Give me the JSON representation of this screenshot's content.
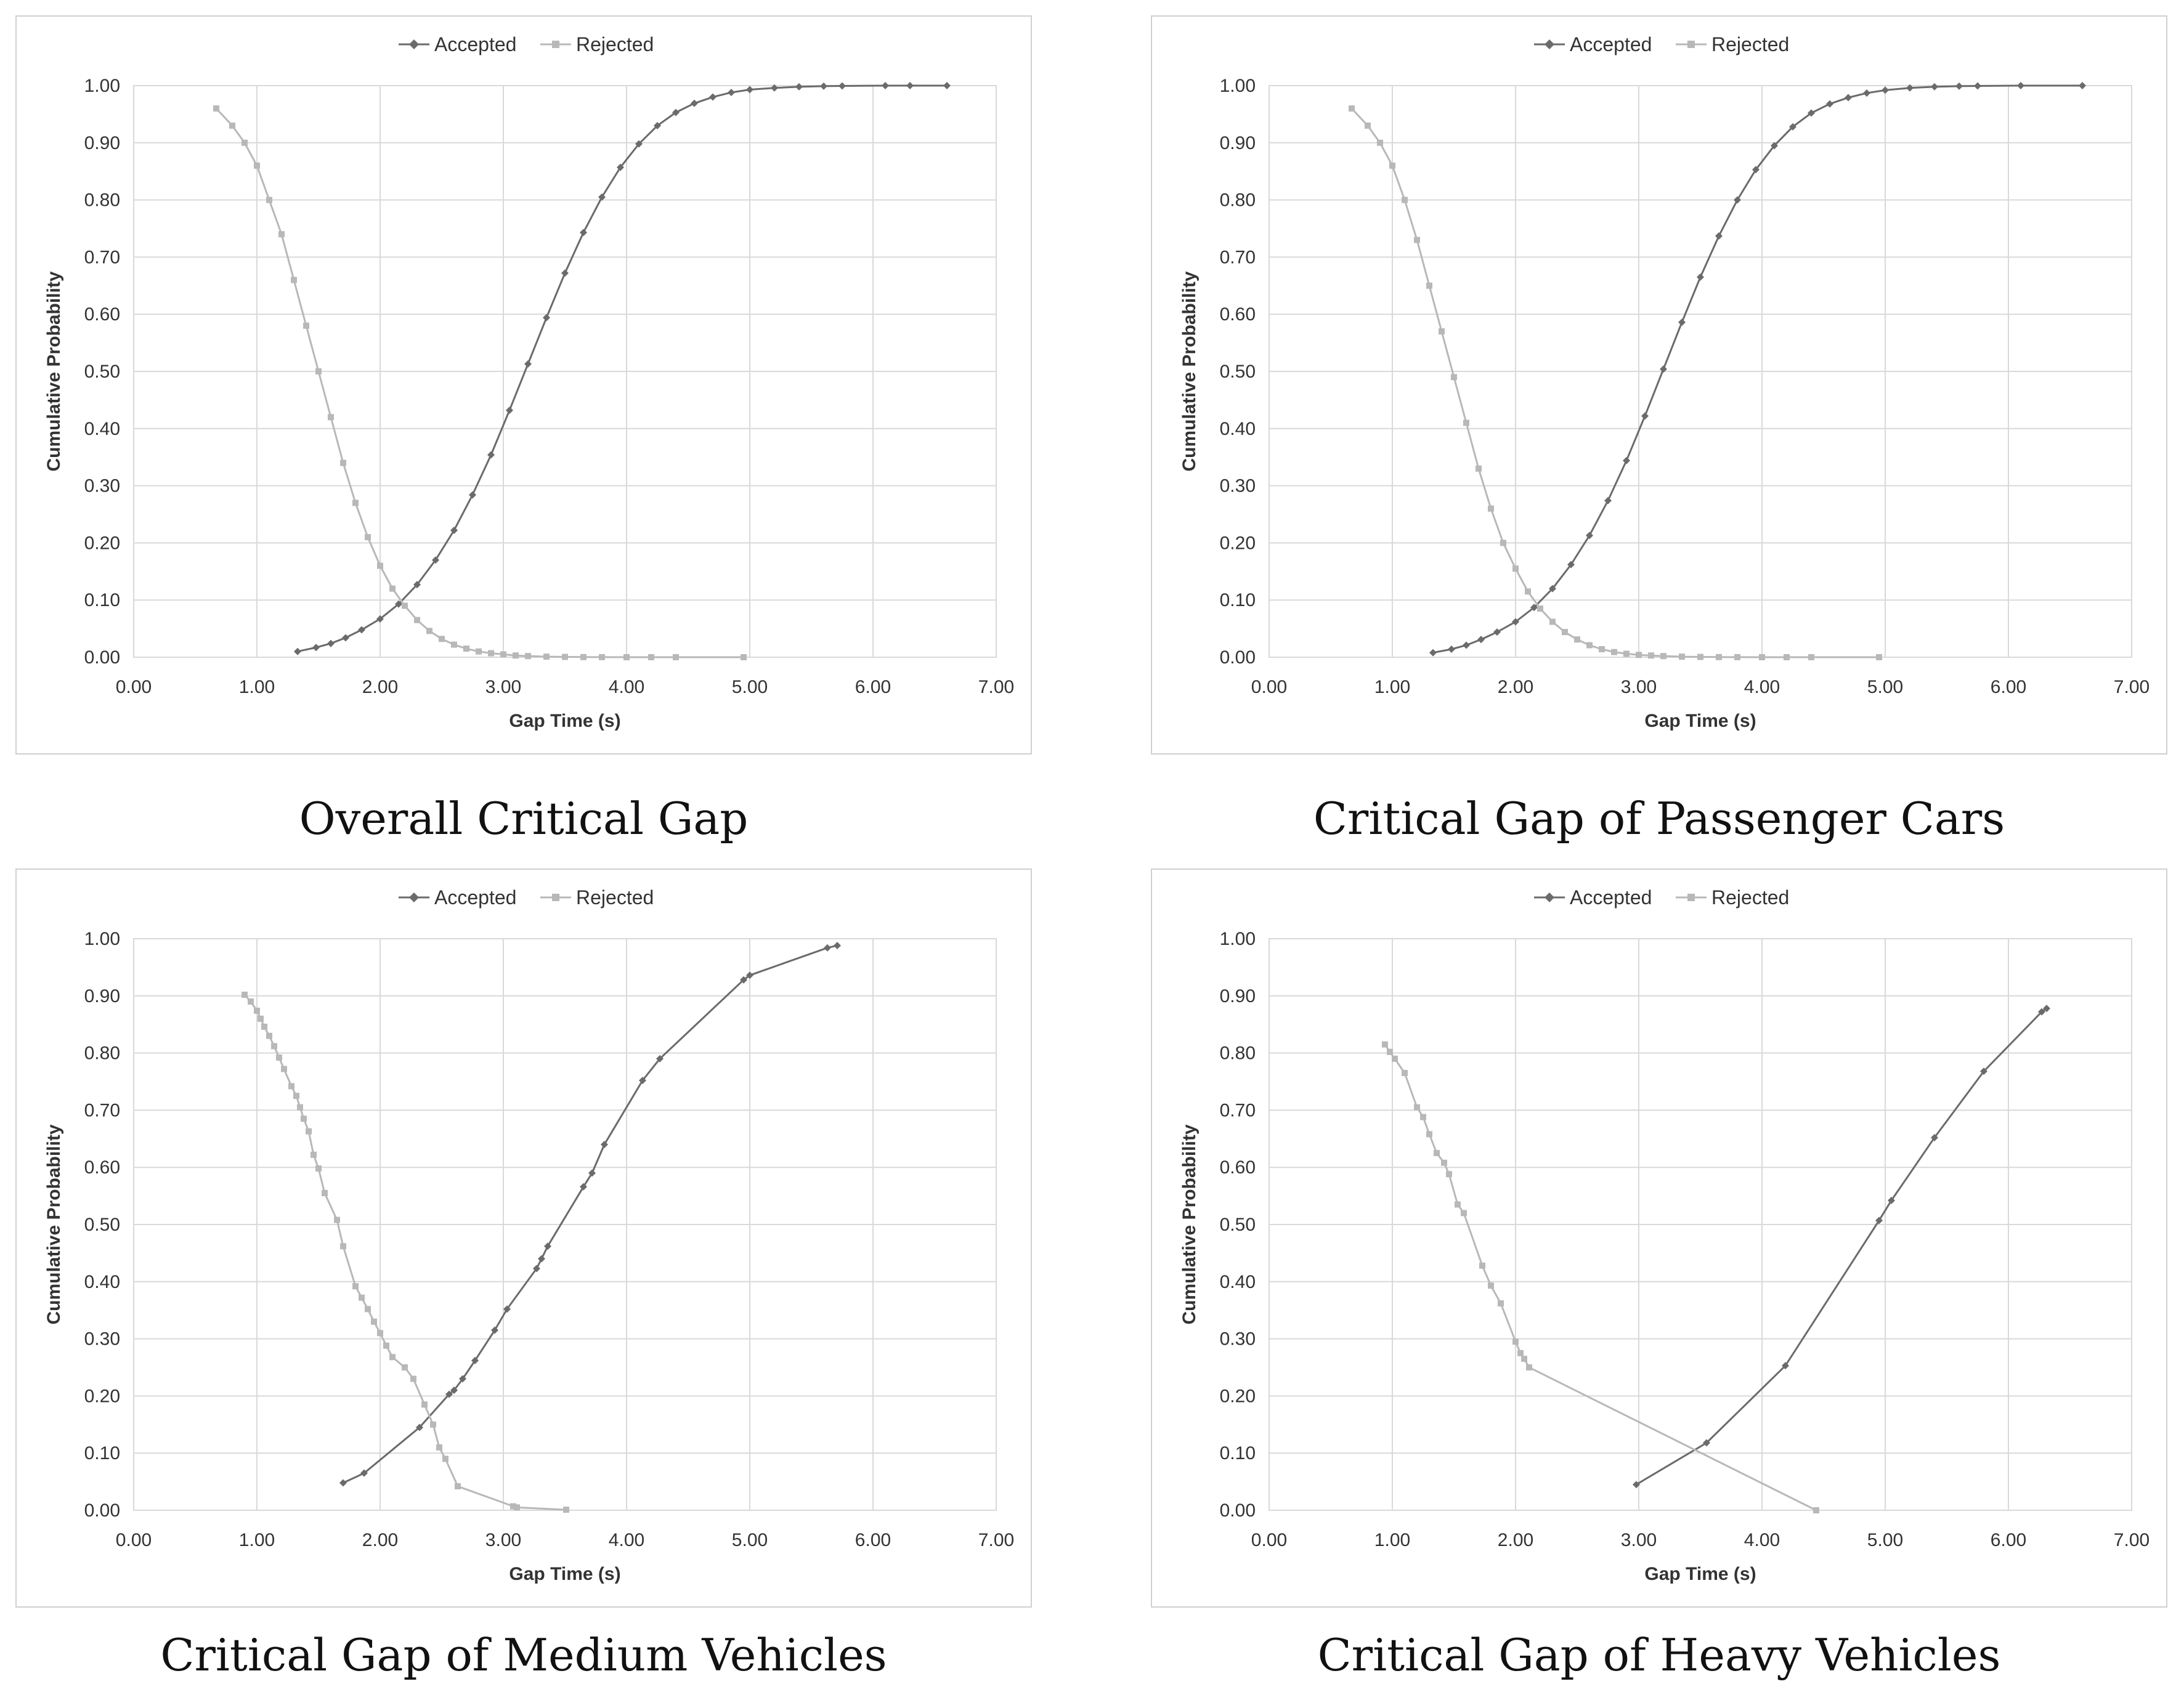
{
  "chart_data": [
    {
      "type": "line",
      "title": "Overall Critical Gap",
      "xlabel": "Gap Time (s)",
      "ylabel": "Cumulative Probability",
      "xlim": [
        0,
        7
      ],
      "ylim": [
        0,
        1
      ],
      "xticks": [
        "0.00",
        "1.00",
        "2.00",
        "3.00",
        "4.00",
        "5.00",
        "6.00",
        "7.00"
      ],
      "yticks": [
        "0.00",
        "0.10",
        "0.20",
        "0.30",
        "0.40",
        "0.50",
        "0.60",
        "0.70",
        "0.80",
        "0.90",
        "1.00"
      ],
      "legend": "top-center",
      "series": [
        {
          "name": "Accepted",
          "color": "#6b6b6b",
          "marker": "diamond",
          "x": [
            1.33,
            1.48,
            1.6,
            1.72,
            1.85,
            2.0,
            2.15,
            2.3,
            2.45,
            2.6,
            2.75,
            2.9,
            3.05,
            3.2,
            3.35,
            3.5,
            3.65,
            3.8,
            3.95,
            4.1,
            4.25,
            4.4,
            4.55,
            4.7,
            4.85,
            5.0,
            5.2,
            5.4,
            5.6,
            5.75,
            6.1,
            6.3,
            6.6
          ],
          "y": [
            0.01,
            0.017,
            0.024,
            0.034,
            0.048,
            0.067,
            0.093,
            0.127,
            0.17,
            0.222,
            0.284,
            0.354,
            0.432,
            0.513,
            0.594,
            0.672,
            0.743,
            0.805,
            0.857,
            0.898,
            0.93,
            0.953,
            0.969,
            0.98,
            0.988,
            0.993,
            0.996,
            0.998,
            0.999,
            0.9995,
            1.0,
            1.0,
            1.0
          ]
        },
        {
          "name": "Rejected",
          "color": "#b8b8b8",
          "marker": "square",
          "x": [
            0.67,
            0.8,
            0.9,
            1.0,
            1.1,
            1.2,
            1.3,
            1.4,
            1.5,
            1.6,
            1.7,
            1.8,
            1.9,
            2.0,
            2.1,
            2.2,
            2.3,
            2.4,
            2.5,
            2.6,
            2.7,
            2.8,
            2.9,
            3.0,
            3.1,
            3.2,
            3.35,
            3.5,
            3.65,
            3.8,
            4.0,
            4.2,
            4.4,
            4.95
          ],
          "y": [
            0.96,
            0.93,
            0.9,
            0.86,
            0.8,
            0.74,
            0.66,
            0.58,
            0.5,
            0.42,
            0.34,
            0.27,
            0.21,
            0.16,
            0.12,
            0.09,
            0.065,
            0.046,
            0.032,
            0.022,
            0.015,
            0.01,
            0.007,
            0.005,
            0.003,
            0.002,
            0.001,
            0.0005,
            0.0002,
            0.0001,
            0.0,
            0.0,
            0.0,
            0.0
          ]
        }
      ]
    },
    {
      "type": "line",
      "title": "Critical Gap of Passenger Cars",
      "xlabel": "Gap Time (s)",
      "ylabel": "Cumulative Probability",
      "xlim": [
        0,
        7
      ],
      "ylim": [
        0,
        1
      ],
      "xticks": [
        "0.00",
        "1.00",
        "2.00",
        "3.00",
        "4.00",
        "5.00",
        "6.00",
        "7.00"
      ],
      "yticks": [
        "0.00",
        "0.10",
        "0.20",
        "0.30",
        "0.40",
        "0.50",
        "0.60",
        "0.70",
        "0.80",
        "0.90",
        "1.00"
      ],
      "legend": "top-center",
      "series": [
        {
          "name": "Accepted",
          "color": "#6b6b6b",
          "marker": "diamond",
          "x": [
            1.33,
            1.48,
            1.6,
            1.72,
            1.85,
            2.0,
            2.15,
            2.3,
            2.45,
            2.6,
            2.75,
            2.9,
            3.05,
            3.2,
            3.35,
            3.5,
            3.65,
            3.8,
            3.95,
            4.1,
            4.25,
            4.4,
            4.55,
            4.7,
            4.85,
            5.0,
            5.2,
            5.4,
            5.6,
            5.75,
            6.1,
            6.6
          ],
          "y": [
            0.008,
            0.014,
            0.021,
            0.031,
            0.044,
            0.062,
            0.087,
            0.12,
            0.162,
            0.213,
            0.274,
            0.344,
            0.422,
            0.504,
            0.586,
            0.665,
            0.737,
            0.8,
            0.853,
            0.895,
            0.928,
            0.952,
            0.968,
            0.979,
            0.987,
            0.992,
            0.996,
            0.998,
            0.999,
            0.9995,
            1.0,
            1.0
          ]
        },
        {
          "name": "Rejected",
          "color": "#b8b8b8",
          "marker": "square",
          "x": [
            0.67,
            0.8,
            0.9,
            1.0,
            1.1,
            1.2,
            1.3,
            1.4,
            1.5,
            1.6,
            1.7,
            1.8,
            1.9,
            2.0,
            2.1,
            2.2,
            2.3,
            2.4,
            2.5,
            2.6,
            2.7,
            2.8,
            2.9,
            3.0,
            3.1,
            3.2,
            3.35,
            3.5,
            3.65,
            3.8,
            4.0,
            4.2,
            4.4,
            4.95
          ],
          "y": [
            0.96,
            0.93,
            0.9,
            0.86,
            0.8,
            0.73,
            0.65,
            0.57,
            0.49,
            0.41,
            0.33,
            0.26,
            0.2,
            0.155,
            0.115,
            0.085,
            0.062,
            0.044,
            0.031,
            0.021,
            0.014,
            0.009,
            0.006,
            0.004,
            0.003,
            0.002,
            0.001,
            0.0005,
            0.0002,
            0.0001,
            0.0,
            0.0,
            0.0,
            0.0
          ]
        }
      ]
    },
    {
      "type": "line",
      "title": "Critical Gap of Medium Vehicles",
      "xlabel": "Gap Time (s)",
      "ylabel": "Cumulative Probability",
      "xlim": [
        0,
        7
      ],
      "ylim": [
        0,
        1
      ],
      "xticks": [
        "0.00",
        "1.00",
        "2.00",
        "3.00",
        "4.00",
        "5.00",
        "6.00",
        "7.00"
      ],
      "yticks": [
        "0.00",
        "0.10",
        "0.20",
        "0.30",
        "0.40",
        "0.50",
        "0.60",
        "0.70",
        "0.80",
        "0.90",
        "1.00"
      ],
      "legend": "top-center",
      "series": [
        {
          "name": "Accepted",
          "color": "#6b6b6b",
          "marker": "diamond",
          "x": [
            1.7,
            1.87,
            2.32,
            2.56,
            2.6,
            2.67,
            2.77,
            2.93,
            3.03,
            3.27,
            3.31,
            3.36,
            3.65,
            3.72,
            3.82,
            4.13,
            4.27,
            4.95,
            5.0,
            5.63,
            5.71
          ],
          "y": [
            0.048,
            0.065,
            0.145,
            0.203,
            0.21,
            0.23,
            0.262,
            0.315,
            0.352,
            0.423,
            0.44,
            0.462,
            0.566,
            0.59,
            0.64,
            0.752,
            0.79,
            0.928,
            0.936,
            0.984,
            0.988
          ]
        },
        {
          "name": "Rejected",
          "color": "#b8b8b8",
          "marker": "square",
          "x": [
            0.9,
            0.95,
            1.0,
            1.03,
            1.06,
            1.1,
            1.14,
            1.18,
            1.22,
            1.28,
            1.32,
            1.35,
            1.38,
            1.42,
            1.46,
            1.5,
            1.55,
            1.65,
            1.7,
            1.8,
            1.85,
            1.9,
            1.95,
            2.0,
            2.05,
            2.1,
            2.2,
            2.27,
            2.36,
            2.43,
            2.48,
            2.53,
            2.63,
            3.08,
            3.11,
            3.51
          ],
          "y": [
            0.902,
            0.89,
            0.874,
            0.86,
            0.846,
            0.83,
            0.812,
            0.792,
            0.772,
            0.742,
            0.725,
            0.705,
            0.685,
            0.663,
            0.622,
            0.598,
            0.555,
            0.508,
            0.462,
            0.392,
            0.372,
            0.352,
            0.33,
            0.31,
            0.288,
            0.268,
            0.25,
            0.23,
            0.185,
            0.15,
            0.11,
            0.09,
            0.042,
            0.007,
            0.005,
            0.001
          ]
        }
      ]
    },
    {
      "type": "line",
      "title": "Critical Gap of Heavy Vehicles",
      "xlabel": "Gap Time (s)",
      "ylabel": "Cumulative Probability",
      "xlim": [
        0,
        7
      ],
      "ylim": [
        0,
        1
      ],
      "xticks": [
        "0.00",
        "1.00",
        "2.00",
        "3.00",
        "4.00",
        "5.00",
        "6.00",
        "7.00"
      ],
      "yticks": [
        "0.00",
        "0.10",
        "0.20",
        "0.30",
        "0.40",
        "0.50",
        "0.60",
        "0.70",
        "0.80",
        "0.90",
        "1.00"
      ],
      "legend": "top-center",
      "series": [
        {
          "name": "Accepted",
          "color": "#6b6b6b",
          "marker": "diamond",
          "x": [
            2.98,
            3.55,
            4.19,
            4.95,
            5.05,
            5.4,
            5.8,
            6.27,
            6.31
          ],
          "y": [
            0.045,
            0.118,
            0.253,
            0.507,
            0.542,
            0.652,
            0.768,
            0.872,
            0.878
          ]
        },
        {
          "name": "Rejected",
          "color": "#b8b8b8",
          "marker": "square",
          "x": [
            0.94,
            0.98,
            1.02,
            1.1,
            1.2,
            1.25,
            1.3,
            1.36,
            1.42,
            1.46,
            1.53,
            1.58,
            1.73,
            1.8,
            1.88,
            2.0,
            2.04,
            2.07,
            2.11,
            4.44
          ],
          "y": [
            0.815,
            0.802,
            0.79,
            0.765,
            0.705,
            0.688,
            0.658,
            0.625,
            0.608,
            0.588,
            0.535,
            0.52,
            0.428,
            0.393,
            0.362,
            0.295,
            0.275,
            0.265,
            0.25,
            0.0
          ]
        }
      ]
    }
  ]
}
